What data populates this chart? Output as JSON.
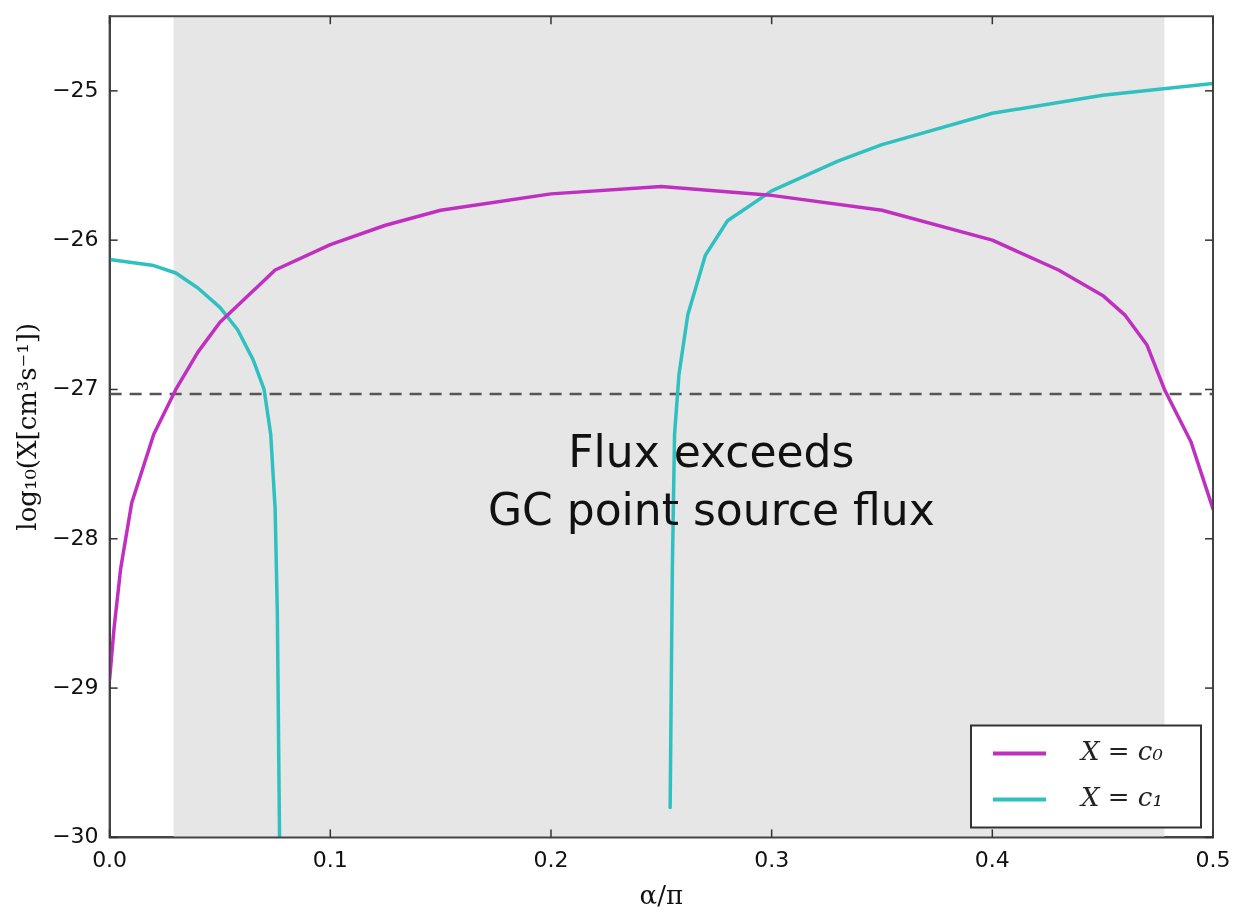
{
  "chart_data": {
    "type": "line",
    "xlabel": "α/π",
    "ylabel": "log₁₀(X[cm³s⁻¹])",
    "annotations": [
      "Flux exceeds\nGC point source flux"
    ],
    "xlim": [
      0,
      0.5
    ],
    "xticks": [
      {
        "value": 0,
        "label": "0.0"
      },
      0.1,
      0.2,
      0.3,
      0.4,
      0.5
    ],
    "ylim": [
      -30,
      -24.5
    ],
    "yticks": [
      {
        "value": -30,
        "label": "−30"
      },
      {
        "value": -29,
        "label": "−29"
      },
      {
        "value": -28,
        "label": "−28"
      },
      {
        "value": -27,
        "label": "−27"
      },
      {
        "value": -26,
        "label": "−26"
      },
      {
        "value": -25,
        "label": "−25"
      }
    ],
    "bands": [
      {
        "axis": "x",
        "from": 0.029,
        "to": 0.478,
        "color": "#e6e6e6"
      }
    ],
    "ref_lines": [
      {
        "axis": "y",
        "value": -27.03,
        "color": "#555555",
        "line_style": "dashed"
      }
    ],
    "grid": false,
    "legend": "bottom right",
    "marker": "none",
    "line_style": "solid",
    "series": [
      {
        "name": "X = c₀",
        "color": "#c030c0",
        "x": [
          0,
          0.002,
          0.005,
          0.01,
          0.02,
          0.03,
          0.04,
          0.05,
          0.075,
          0.1,
          0.125,
          0.15,
          0.2,
          0.25,
          0.3,
          0.35,
          0.4,
          0.43,
          0.45,
          0.46,
          0.47,
          0.478,
          0.49,
          0.5
        ],
        "values": [
          -28.94,
          -28.6,
          -28.2,
          -27.76,
          -27.3,
          -27.0,
          -26.75,
          -26.55,
          -26.2,
          -26.03,
          -25.9,
          -25.8,
          -25.69,
          -25.64,
          -25.7,
          -25.8,
          -26.0,
          -26.2,
          -26.37,
          -26.5,
          -26.7,
          -27.0,
          -27.35,
          -27.8
        ]
      },
      {
        "name": "X = c₁",
        "color": "#30c0c0",
        "x": [
          0,
          0.02,
          0.03,
          0.04,
          0.05,
          0.058,
          0.065,
          0.07,
          0.073,
          0.075,
          0.076,
          0.077,
          0.15,
          0.254,
          0.2545,
          0.255,
          0.256,
          0.258,
          0.262,
          0.27,
          0.28,
          0.3,
          0.33,
          0.35,
          0.4,
          0.45,
          0.5
        ],
        "values": [
          -26.13,
          -26.17,
          -26.22,
          -26.32,
          -26.45,
          -26.6,
          -26.8,
          -27.0,
          -27.3,
          -27.8,
          -28.5,
          -30,
          null,
          -29.8,
          -29.0,
          -28.2,
          -27.3,
          -26.9,
          -26.5,
          -26.1,
          -25.87,
          -25.67,
          -25.47,
          -25.36,
          -25.15,
          -25.03,
          -24.95
        ]
      }
    ]
  }
}
